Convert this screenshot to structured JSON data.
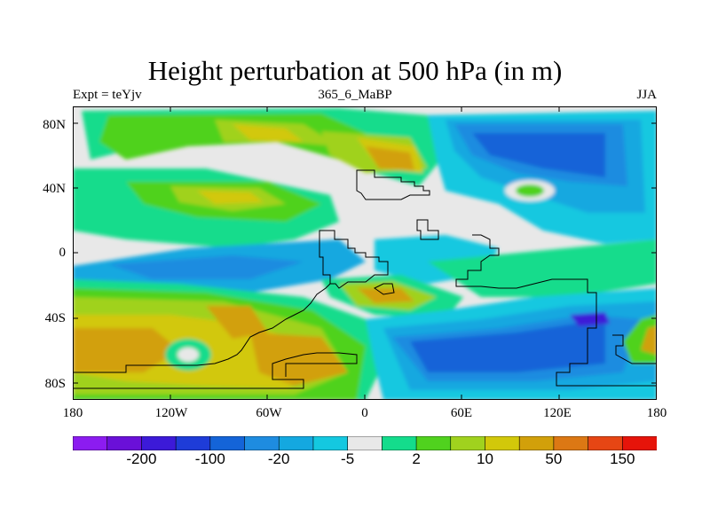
{
  "title": "Height perturbation at 500 hPa (in m)",
  "subtitle_left": "Expt = teYjv",
  "subtitle_center": "365_6_MaBP",
  "subtitle_right": "JJA",
  "y_ticks": [
    "80N",
    "40N",
    "0",
    "40S",
    "80S"
  ],
  "x_ticks": [
    "180",
    "120W",
    "60W",
    "0",
    "60E",
    "120E",
    "180"
  ],
  "colorbar": {
    "colors": [
      "#8c1cf0",
      "#6a10d8",
      "#3c1ad8",
      "#1e3cd8",
      "#1464d8",
      "#1e8ce0",
      "#14a8e0",
      "#14c8e0",
      "#e8e8e8",
      "#14dc8c",
      "#50d21e",
      "#a0d21e",
      "#d2c80a",
      "#d2a00a",
      "#dc7814",
      "#e64614",
      "#e6140a"
    ],
    "labels": [
      {
        "text": "-200",
        "index": 1
      },
      {
        "text": "-100",
        "index": 3
      },
      {
        "text": "-20",
        "index": 5
      },
      {
        "text": "-5",
        "index": 7
      },
      {
        "text": "2",
        "index": 9
      },
      {
        "text": "10",
        "index": 11
      },
      {
        "text": "50",
        "index": 13
      },
      {
        "text": "150",
        "index": 15
      }
    ]
  }
}
